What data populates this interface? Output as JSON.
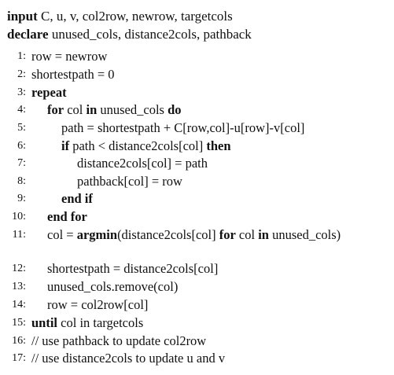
{
  "header": {
    "input_kw": "input",
    "input_args": "C, u, v, col2row, newrow, targetcols",
    "declare_kw": "declare",
    "declare_args": "unused_cols, distance2cols, pathback"
  },
  "lines": [
    {
      "num": "1:",
      "parts": [
        {
          "t": "row = newrow"
        }
      ]
    },
    {
      "num": "2:",
      "parts": [
        {
          "t": "shortestpath = 0"
        }
      ]
    },
    {
      "num": "3:",
      "parts": [
        {
          "t": "repeat",
          "b": true
        }
      ]
    },
    {
      "num": "4:",
      "parts": [
        {
          "t": "for",
          "b": true
        },
        {
          "t": " col "
        },
        {
          "t": "in",
          "b": true
        },
        {
          "t": " unused_cols "
        },
        {
          "t": "do",
          "b": true
        }
      ]
    },
    {
      "num": "5:",
      "parts": [
        {
          "t": "path = shortestpath + C[row,col]-u[row]-v[col]"
        }
      ]
    },
    {
      "num": "6:",
      "parts": [
        {
          "t": "if",
          "b": true
        },
        {
          "t": " path < distance2cols[col] "
        },
        {
          "t": "then",
          "b": true
        }
      ]
    },
    {
      "num": "7:",
      "parts": [
        {
          "t": "distance2cols[col] = path"
        }
      ]
    },
    {
      "num": "8:",
      "parts": [
        {
          "t": "pathback[col] = row"
        }
      ]
    },
    {
      "num": "9:",
      "parts": [
        {
          "t": "end if",
          "b": true
        }
      ]
    },
    {
      "num": "10:",
      "parts": [
        {
          "t": "end for",
          "b": true
        }
      ]
    },
    {
      "num": "11:",
      "parts": [
        {
          "t": "col = "
        },
        {
          "t": "argmin",
          "b": true
        },
        {
          "t": "(distance2cols[col] "
        },
        {
          "t": "for",
          "b": true
        },
        {
          "t": " col "
        },
        {
          "t": "in",
          "b": true
        },
        {
          "t": " unused_cols)"
        }
      ]
    },
    {
      "num": "12:",
      "parts": [
        {
          "t": "shortestpath = distance2cols[col]"
        }
      ]
    },
    {
      "num": "13:",
      "parts": [
        {
          "t": "unused_cols.remove(col)"
        }
      ]
    },
    {
      "num": "14:",
      "parts": [
        {
          "t": "row = col2row[col]"
        }
      ]
    },
    {
      "num": "15:",
      "parts": [
        {
          "t": "until",
          "b": true
        },
        {
          "t": " col in targetcols"
        }
      ]
    },
    {
      "num": "16:",
      "parts": [
        {
          "t": "// use pathback to update col2row"
        }
      ]
    },
    {
      "num": "17:",
      "parts": [
        {
          "t": "// use distance2cols to update u and v"
        }
      ]
    }
  ]
}
